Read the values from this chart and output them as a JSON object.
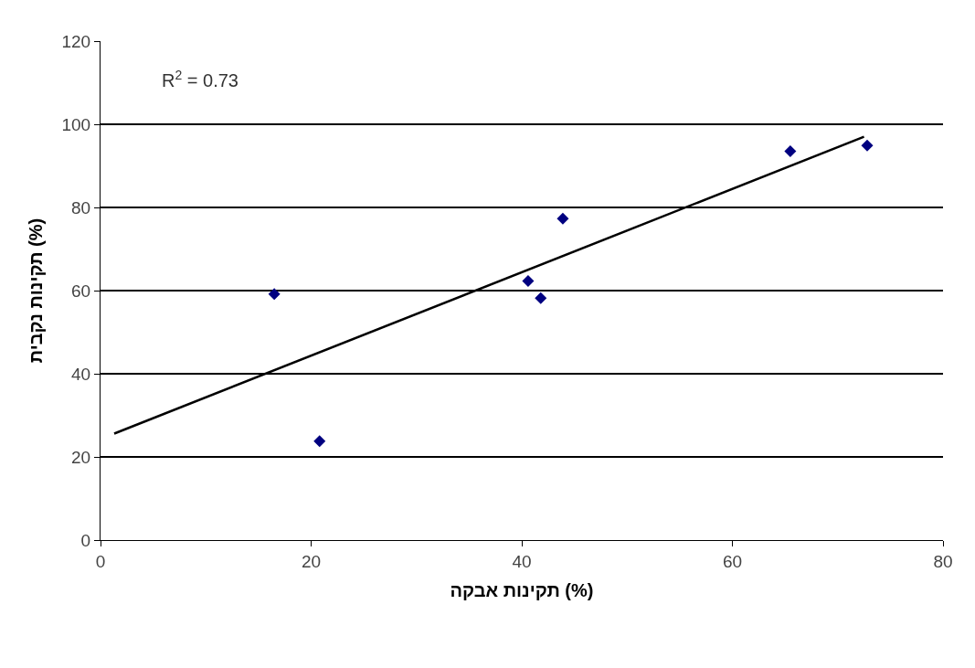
{
  "chart_data": {
    "type": "scatter",
    "xlabel": "תקינות אבקה (%)",
    "ylabel": "תקינות נקבית (%)",
    "xlim": [
      0,
      80
    ],
    "xticks": [
      0,
      20,
      40,
      60,
      80
    ],
    "ylim": [
      0,
      120
    ],
    "yticks": [
      0,
      20,
      40,
      60,
      80,
      100,
      120
    ],
    "grid": "y",
    "marker": "diamond",
    "annotations": [
      "R$^{2}$ = 0.73"
    ],
    "series": [
      {
        "color": "#000080",
        "x": [
          16.5,
          20.8,
          40.6,
          41.8,
          43.9,
          65.5,
          72.8
        ],
        "values": [
          59.2,
          23.8,
          62.3,
          58.2,
          77.3,
          93.5,
          94.9
        ]
      },
      {
        "type": "line",
        "marker": "none",
        "color": "#000000",
        "x": [
          1.3,
          72.5
        ],
        "values": [
          25.6,
          97.0
        ]
      }
    ]
  }
}
